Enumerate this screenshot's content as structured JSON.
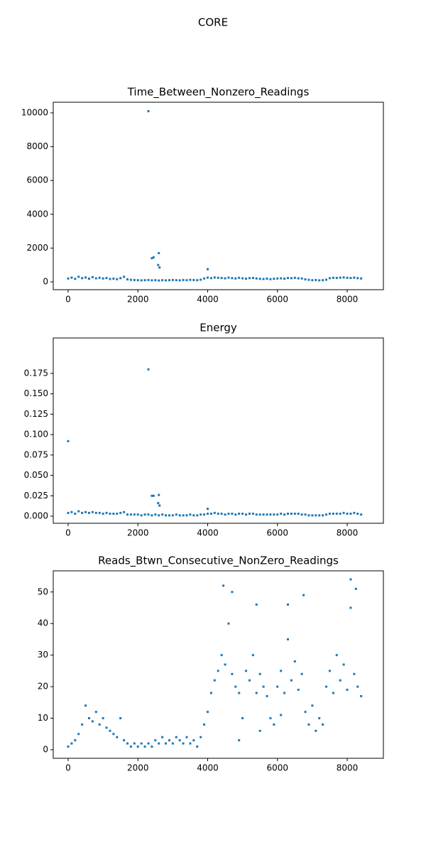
{
  "title": "CORE",
  "chart_data": [
    {
      "type": "scatter",
      "title": "Time_Between_Nonzero_Readings",
      "color": "#1f77b4",
      "x": [
        0,
        100,
        200,
        300,
        400,
        500,
        600,
        700,
        800,
        900,
        1000,
        1100,
        1200,
        1300,
        1400,
        1500,
        1600,
        1700,
        1800,
        1900,
        2000,
        2100,
        2200,
        2300,
        2400,
        2500,
        2600,
        2700,
        2800,
        2900,
        3000,
        3100,
        3200,
        3300,
        3400,
        3500,
        3600,
        3700,
        3800,
        3900,
        4000,
        4100,
        4200,
        4300,
        4400,
        4500,
        4600,
        4700,
        4800,
        4900,
        5000,
        5100,
        5200,
        5300,
        5400,
        5500,
        5600,
        5700,
        5800,
        5900,
        6000,
        6100,
        6200,
        6300,
        6400,
        6500,
        6600,
        6700,
        6800,
        6900,
        7000,
        7100,
        7200,
        7300,
        7400,
        7500,
        7600,
        7700,
        7800,
        7900,
        8000,
        8100,
        8200,
        8300,
        8400,
        2300,
        2400,
        2450,
        2600,
        2580,
        2620,
        4000
      ],
      "y": [
        200,
        250,
        180,
        300,
        220,
        260,
        190,
        280,
        210,
        240,
        200,
        230,
        170,
        190,
        160,
        220,
        300,
        150,
        120,
        110,
        100,
        90,
        100,
        110,
        90,
        100,
        80,
        100,
        90,
        100,
        110,
        100,
        90,
        110,
        100,
        120,
        110,
        100,
        130,
        200,
        250,
        220,
        260,
        240,
        230,
        210,
        250,
        220,
        200,
        240,
        210,
        190,
        220,
        230,
        200,
        180,
        170,
        190,
        160,
        180,
        200,
        210,
        190,
        230,
        220,
        240,
        210,
        200,
        150,
        120,
        100,
        110,
        90,
        100,
        130,
        220,
        240,
        230,
        250,
        260,
        240,
        230,
        250,
        220,
        200,
        10100,
        1400,
        1450,
        1700,
        1000,
        850,
        750
      ],
      "xlim": [
        -427,
        9038
      ],
      "ylim": [
        -462,
        10630
      ],
      "xticks": [
        0,
        2000,
        4000,
        6000,
        8000
      ],
      "yticks": [
        0,
        2000,
        4000,
        6000,
        8000,
        10000
      ]
    },
    {
      "type": "scatter",
      "title": "Energy",
      "color": "#1f77b4",
      "x": [
        0,
        100,
        200,
        300,
        400,
        500,
        600,
        700,
        800,
        900,
        1000,
        1100,
        1200,
        1300,
        1400,
        1500,
        1600,
        1700,
        1800,
        1900,
        2000,
        2100,
        2200,
        2300,
        2400,
        2500,
        2600,
        2700,
        2800,
        2900,
        3000,
        3100,
        3200,
        3300,
        3400,
        3500,
        3600,
        3700,
        3800,
        3900,
        4000,
        4100,
        4200,
        4300,
        4400,
        4500,
        4600,
        4700,
        4800,
        4900,
        5000,
        5100,
        5200,
        5300,
        5400,
        5500,
        5600,
        5700,
        5800,
        5900,
        6000,
        6100,
        6200,
        6300,
        6400,
        6500,
        6600,
        6700,
        6800,
        6900,
        7000,
        7100,
        7200,
        7300,
        7400,
        7500,
        7600,
        7700,
        7800,
        7900,
        8000,
        8100,
        8200,
        8300,
        8400,
        0,
        2300,
        2400,
        2450,
        2600,
        2580,
        2620,
        4000
      ],
      "y": [
        0.004,
        0.005,
        0.003,
        0.006,
        0.004,
        0.005,
        0.004,
        0.005,
        0.004,
        0.004,
        0.003,
        0.004,
        0.003,
        0.003,
        0.003,
        0.004,
        0.005,
        0.002,
        0.002,
        0.002,
        0.002,
        0.001,
        0.002,
        0.002,
        0.001,
        0.002,
        0.001,
        0.002,
        0.001,
        0.001,
        0.001,
        0.002,
        0.001,
        0.001,
        0.001,
        0.002,
        0.001,
        0.001,
        0.002,
        0.002,
        0.003,
        0.003,
        0.004,
        0.003,
        0.003,
        0.002,
        0.003,
        0.003,
        0.002,
        0.003,
        0.003,
        0.002,
        0.003,
        0.003,
        0.002,
        0.002,
        0.002,
        0.002,
        0.002,
        0.002,
        0.002,
        0.003,
        0.002,
        0.003,
        0.003,
        0.003,
        0.003,
        0.002,
        0.002,
        0.001,
        0.001,
        0.001,
        0.001,
        0.001,
        0.002,
        0.003,
        0.003,
        0.003,
        0.003,
        0.004,
        0.003,
        0.003,
        0.004,
        0.003,
        0.002,
        0.092,
        0.18,
        0.025,
        0.025,
        0.026,
        0.016,
        0.013,
        0.009
      ],
      "xlim": [
        -427,
        9038
      ],
      "ylim": [
        -0.0087,
        0.2185
      ],
      "xticks": [
        0,
        2000,
        4000,
        6000,
        8000
      ],
      "yticks": [
        {
          "value": 0,
          "label": "0.000"
        },
        0.025,
        {
          "value": 0.05,
          "label": "0.050"
        },
        0.075,
        {
          "value": 0.1,
          "label": "0.100"
        },
        0.125,
        {
          "value": 0.15,
          "label": "0.150"
        },
        0.175
      ]
    },
    {
      "type": "scatter",
      "title": "Reads_Btwn_Consecutive_NonZero_Readings",
      "color": "#1f77b4",
      "x": [
        0,
        100,
        200,
        300,
        400,
        500,
        600,
        700,
        800,
        900,
        1000,
        1100,
        1200,
        1300,
        1400,
        1500,
        1600,
        1700,
        1800,
        1900,
        2000,
        2100,
        2200,
        2300,
        2400,
        2500,
        2600,
        2700,
        2800,
        2900,
        3000,
        3100,
        3200,
        3300,
        3400,
        3500,
        3600,
        3700,
        3800,
        3900,
        4000,
        4100,
        4200,
        4300,
        4400,
        4500,
        4600,
        4700,
        4800,
        4900,
        5000,
        5100,
        5200,
        5300,
        5400,
        5500,
        5600,
        5700,
        5800,
        5900,
        6000,
        6100,
        6200,
        6300,
        6400,
        6500,
        6600,
        6700,
        6800,
        6900,
        7000,
        7100,
        7200,
        7300,
        7400,
        7500,
        7600,
        7700,
        7800,
        7900,
        8000,
        8100,
        8200,
        8300,
        8400,
        4450,
        5400,
        6300,
        6750,
        8100,
        8250,
        4700,
        4900,
        5500,
        6100
      ],
      "y": [
        1,
        2,
        3,
        5,
        8,
        14,
        10,
        9,
        12,
        8,
        10,
        7,
        6,
        5,
        4,
        10,
        3,
        2,
        1,
        2,
        1,
        2,
        1,
        2,
        1,
        3,
        2,
        4,
        2,
        3,
        2,
        4,
        3,
        2,
        4,
        2,
        3,
        1,
        4,
        8,
        12,
        18,
        22,
        25,
        30,
        27,
        40,
        24,
        20,
        18,
        10,
        25,
        22,
        30,
        18,
        24,
        20,
        17,
        10,
        8,
        20,
        25,
        18,
        35,
        22,
        28,
        19,
        24,
        12,
        8,
        14,
        6,
        10,
        8,
        20,
        25,
        18,
        30,
        22,
        27,
        19,
        45,
        24,
        20,
        17,
        52,
        46,
        46,
        49,
        54,
        51,
        50,
        3,
        6,
        11
      ],
      "xlim": [
        -427,
        9038
      ],
      "ylim": [
        -2.7,
        56.7
      ],
      "xticks": [
        0,
        2000,
        4000,
        6000,
        8000
      ],
      "yticks": [
        0,
        10,
        20,
        30,
        40,
        50
      ]
    }
  ]
}
